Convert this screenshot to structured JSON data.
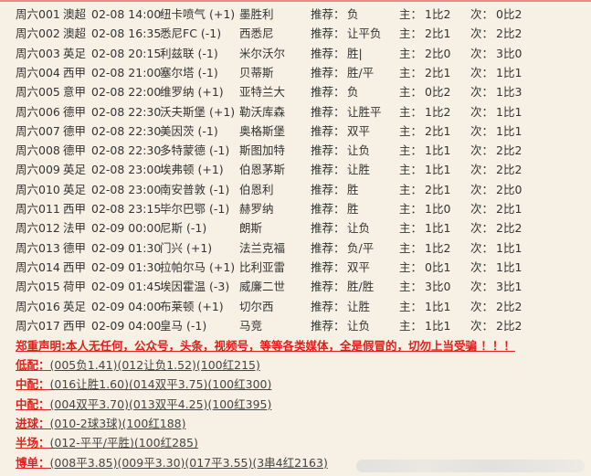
{
  "labels": {
    "rec": "推荐：",
    "main": "主：",
    "sub": "次："
  },
  "matches": [
    {
      "id": "周六001",
      "league": "澳超",
      "date": "02-08 14:00",
      "home": "纽卡喷气 (+1)",
      "away": "墨胜利",
      "rec": "负",
      "main": "1比2",
      "sub": "0比2"
    },
    {
      "id": "周六002",
      "league": "澳超",
      "date": "02-08 16:35",
      "home": "悉尼FC (-1)",
      "away": "西悉尼",
      "rec": "让平负",
      "main": "2比1",
      "sub": "2比2"
    },
    {
      "id": "周六003",
      "league": "英足",
      "date": "02-08 20:15",
      "home": "利兹联 (-1)",
      "away": "米尔沃尔",
      "rec": "胜|",
      "main": "2比0",
      "sub": "3比0"
    },
    {
      "id": "周六004",
      "league": "西甲",
      "date": "02-08 21:00",
      "home": "塞尔塔 (-1)",
      "away": "贝蒂斯",
      "rec": "胜/平",
      "main": "2比1",
      "sub": "1比1"
    },
    {
      "id": "周六005",
      "league": "意甲",
      "date": "02-08 22:00",
      "home": "维罗纳 (+1)",
      "away": "亚特兰大",
      "rec": "负",
      "main": "0比2",
      "sub": "1比3"
    },
    {
      "id": "周六006",
      "league": "德甲",
      "date": "02-08 22:30",
      "home": "沃夫斯堡 (+1)",
      "away": "勒沃库森",
      "rec": "让胜平",
      "main": "1比2",
      "sub": "1比1"
    },
    {
      "id": "周六007",
      "league": "德甲",
      "date": "02-08 22:30",
      "home": "美因茨 (-1)",
      "away": "奥格斯堡",
      "rec": "双平",
      "main": "2比1",
      "sub": "1比1"
    },
    {
      "id": "周六008",
      "league": "德甲",
      "date": "02-08 22:30",
      "home": "多特蒙德 (-1)",
      "away": "斯图加特",
      "rec": "让负",
      "main": "1比1",
      "sub": "2比2"
    },
    {
      "id": "周六009",
      "league": "英足",
      "date": "02-08 23:00",
      "home": "埃弗顿 (+1)",
      "away": "伯恩茅斯",
      "rec": "让胜",
      "main": "1比1",
      "sub": "2比2"
    },
    {
      "id": "周六010",
      "league": "英足",
      "date": "02-08 23:00",
      "home": "南安普敦 (-1)",
      "away": "伯恩利",
      "rec": "胜",
      "main": "2比1",
      "sub": "2比0"
    },
    {
      "id": "周六011",
      "league": "西甲",
      "date": "02-08 23:15",
      "home": "毕尔巴鄂 (-1)",
      "away": "赫罗纳",
      "rec": "胜",
      "main": "1比0",
      "sub": "2比1"
    },
    {
      "id": "周六012",
      "league": "法甲",
      "date": "02-09 00:00",
      "home": "尼斯 (-1)",
      "away": "朗斯",
      "rec": "让负",
      "main": "1比1",
      "sub": "2比2"
    },
    {
      "id": "周六013",
      "league": "德甲",
      "date": "02-09 01:30",
      "home": "门兴 (+1)",
      "away": "法兰克福",
      "rec": "负/平",
      "main": "1比2",
      "sub": "1比1"
    },
    {
      "id": "周六014",
      "league": "西甲",
      "date": "02-09 01:30",
      "home": "拉帕尔马 (+1)",
      "away": "比利亚雷",
      "rec": "双平",
      "main": "0比1",
      "sub": "1比1"
    },
    {
      "id": "周六015",
      "league": "荷甲",
      "date": "02-09 01:45",
      "home": "埃因霍温 (-3)",
      "away": "威廉二世",
      "rec": "胜/胜",
      "main": "3比0",
      "sub": "3比1"
    },
    {
      "id": "周六016",
      "league": "英足",
      "date": "02-09 04:00",
      "home": "布莱顿 (+1)",
      "away": "切尔西",
      "rec": "让胜",
      "main": "1比1",
      "sub": "2比2"
    },
    {
      "id": "周六017",
      "league": "西甲",
      "date": "02-09 04:00",
      "home": "皇马 (-1)",
      "away": "马竞",
      "rec": "让负",
      "main": "1比1",
      "sub": "2比2"
    }
  ],
  "notice": "郑重声明:本人无任何，公众号，头条，视频号，等等各类媒体，全是假冒的，切勿上当受骗 ！！！",
  "picks": [
    {
      "label": "低配：",
      "value": "(005负1.41)(012让负1.52)(100红215)"
    },
    {
      "label": "中配：",
      "value": "(016让胜1.60)(014双平3.75)(100红300)"
    },
    {
      "label": "中配：",
      "value": "(004双平3.70)(013双平4.25)(100红395)"
    },
    {
      "label": "进球：",
      "value": "(010-2球3球)(100红188)"
    },
    {
      "label": "半场：",
      "value": "(012-平平/平胜)(100红285)"
    },
    {
      "label": "博单：",
      "value": "(008平3.85)(009平3.30)(017平3.55)(3串4红2163)"
    }
  ],
  "colors": {
    "background": "#f6f1e4",
    "accent": "#e0201c",
    "text": "#333333"
  }
}
